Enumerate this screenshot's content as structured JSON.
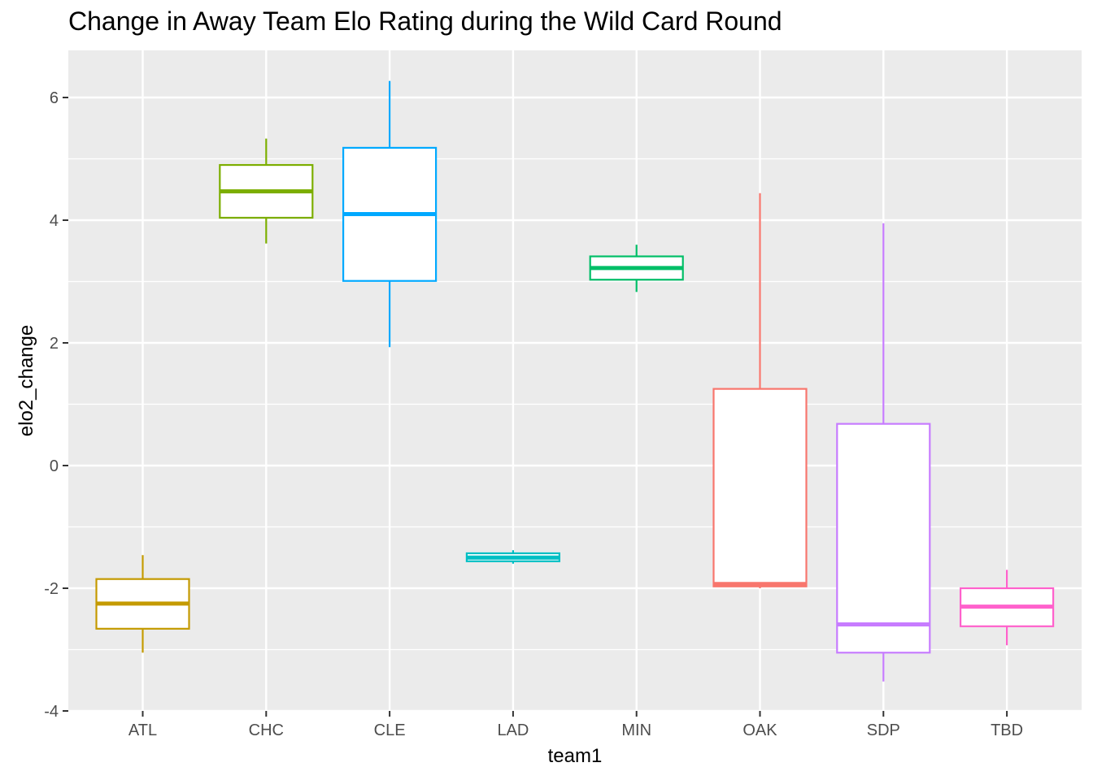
{
  "chart_data": {
    "type": "box",
    "title": "Change in Away Team Elo Rating during the Wild Card Round",
    "xlabel": "team1",
    "ylabel": "elo2_change",
    "ylim": [
      -4,
      6.7
    ],
    "yticks": [
      -4,
      -2,
      0,
      2,
      4,
      6
    ],
    "ytick_labels": [
      "-4",
      "-2",
      "0",
      "2",
      "4",
      "6"
    ],
    "grid": true,
    "legend": "none",
    "panel_background": "#ebebeb",
    "grid_color": "#ffffff",
    "categories": [
      "ATL",
      "CHC",
      "CLE",
      "LAD",
      "MIN",
      "OAK",
      "SDP",
      "TBD"
    ],
    "boxes": [
      {
        "category": "ATL",
        "color": "#C49A00",
        "whisker_low": -3.05,
        "q1": -2.66,
        "median": -2.25,
        "q3": -1.85,
        "whisker_high": -1.46
      },
      {
        "category": "CHC",
        "color": "#7CAE00",
        "whisker_low": 3.62,
        "q1": 4.04,
        "median": 4.47,
        "q3": 4.9,
        "whisker_high": 5.33
      },
      {
        "category": "CLE",
        "color": "#00A9FF",
        "whisker_low": 1.93,
        "q1": 3.01,
        "median": 4.1,
        "q3": 5.18,
        "whisker_high": 6.27
      },
      {
        "category": "LAD",
        "color": "#00BFC4",
        "whisker_low": -1.6,
        "q1": -1.56,
        "median": -1.5,
        "q3": -1.43,
        "whisker_high": -1.38
      },
      {
        "category": "MIN",
        "color": "#00BE67",
        "whisker_low": 2.83,
        "q1": 3.03,
        "median": 3.22,
        "q3": 3.41,
        "whisker_high": 3.6
      },
      {
        "category": "OAK",
        "color": "#F8766D",
        "whisker_low": -2.0,
        "q1": -1.97,
        "median": -1.93,
        "q3": 1.25,
        "whisker_high": 4.44
      },
      {
        "category": "SDP",
        "color": "#C77CFF",
        "whisker_low": -3.52,
        "q1": -3.05,
        "median": -2.59,
        "q3": 0.68,
        "whisker_high": 3.95
      },
      {
        "category": "TBD",
        "color": "#FF61CC",
        "whisker_low": -2.93,
        "q1": -2.62,
        "median": -2.3,
        "q3": -2.0,
        "whisker_high": -1.7
      }
    ]
  }
}
